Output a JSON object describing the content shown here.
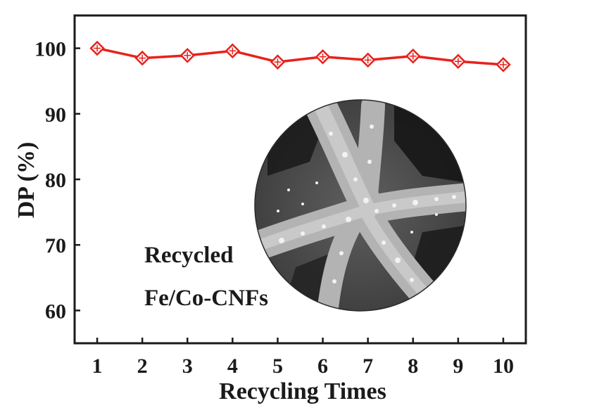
{
  "chart_data": {
    "type": "line",
    "xlabel": "Recycling Times",
    "ylabel": "DP (%)",
    "xlim": [
      0.5,
      10.5
    ],
    "ylim": [
      55,
      105
    ],
    "x": [
      1,
      2,
      3,
      4,
      5,
      6,
      7,
      8,
      9,
      10
    ],
    "x_ticks": [
      "1",
      "2",
      "3",
      "4",
      "5",
      "6",
      "7",
      "8",
      "9",
      "10"
    ],
    "y_ticks": [
      "60",
      "70",
      "80",
      "90",
      "100"
    ],
    "y_tick_values": [
      60,
      70,
      80,
      90,
      100
    ],
    "series": [
      {
        "values": [
          100.0,
          98.5,
          98.9,
          99.6,
          97.9,
          98.7,
          98.2,
          98.8,
          98.0,
          97.5
        ],
        "color": "#e8211c",
        "marker": "diamond-open"
      }
    ],
    "grid": false,
    "annotation": {
      "lines": [
        "Recycled",
        "Fe/Co-CNFs"
      ]
    },
    "inset": {
      "kind": "SEM micrograph (circular inset)"
    }
  }
}
